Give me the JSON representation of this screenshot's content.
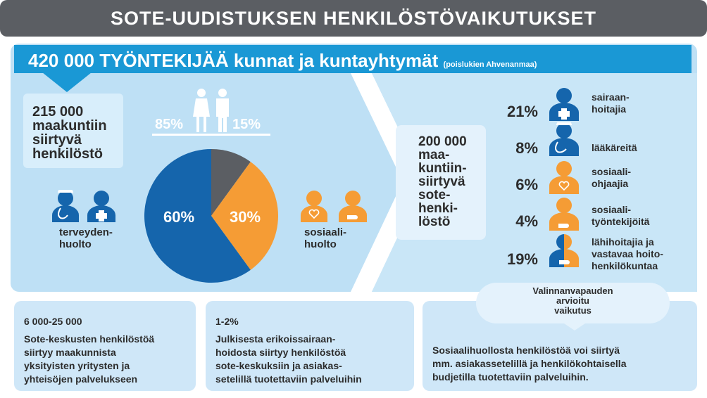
{
  "title": "SOTE-UUDISTUKSEN HENKILÖSTÖVAIKUTUKSET",
  "banner": {
    "main": "420 000 TYÖNTEKIJÄÄ kunnat ja kuntayhtymät",
    "note": "(poislukien Ahvenanmaa)"
  },
  "left_box": [
    "215 000",
    "maakuntiin",
    "siirtyvä",
    "henkilöstö"
  ],
  "gender": {
    "women": "85%",
    "men": "15%"
  },
  "pie": {
    "health_label": "60%",
    "social_label": "30%",
    "values": {
      "health": 60,
      "social": 30,
      "other": 10
    },
    "colors": {
      "health": "#1565ac",
      "social": "#f59c35",
      "other": "#5b5e63"
    }
  },
  "health_label": [
    "terveyden-",
    "huolto"
  ],
  "social_label": [
    "sosiaali-",
    "huolto"
  ],
  "center_box": [
    "200 000",
    "maa-",
    "kuntiin-",
    "siirtyvä",
    "sote-",
    "henki-",
    "löstö"
  ],
  "professions": [
    {
      "pct": "21%",
      "lines": [
        "sairaan-",
        "hoitajia"
      ],
      "icon": "nurse-icon"
    },
    {
      "pct": "8%",
      "lines": [
        "lääkäreitä"
      ],
      "icon": "doctor-icon"
    },
    {
      "pct": "6%",
      "lines": [
        "sosiaali-",
        "ohjaajia"
      ],
      "icon": "social-counselor-icon"
    },
    {
      "pct": "4%",
      "lines": [
        "sosiaali-",
        "työntekijöitä"
      ],
      "icon": "social-worker-icon"
    },
    {
      "pct": "19%",
      "lines": [
        "lähihoitajia ja",
        "vastavaa hoito-",
        "henkilökuntaa"
      ],
      "icon": "practical-nurse-icon"
    }
  ],
  "choice_oval": [
    "Valinnanvapauden",
    "arvioitu",
    "vaikutus"
  ],
  "bottom": [
    {
      "head": "6 000-25 000",
      "lines": [
        "Sote-keskusten henkilöstöä",
        "siirtyy maakunnista",
        "yksityisten yritysten ja",
        "yhteisöjen palvelukseen"
      ]
    },
    {
      "head": "1-2%",
      "lines": [
        "Julkisesta erikoissairaan-",
        "hoidosta siirtyy henkilöstöä",
        "sote-keskuksiin ja asiakas-",
        "setelillä tuotettaviin palveluihin"
      ]
    },
    {
      "head": "",
      "lines": [
        "Sosiaalihuollosta henkilöstöä voi siirtyä",
        "mm. asiakassetelillä ja henkilökohtaisella",
        "budjetilla tuotettaviin palveluihin."
      ]
    }
  ],
  "colors": {
    "dark_blue": "#1565ac",
    "orange": "#f59c35",
    "banner_blue": "#1a98d5",
    "light_blue": "#bee0f5",
    "gray": "#5b5e63"
  }
}
